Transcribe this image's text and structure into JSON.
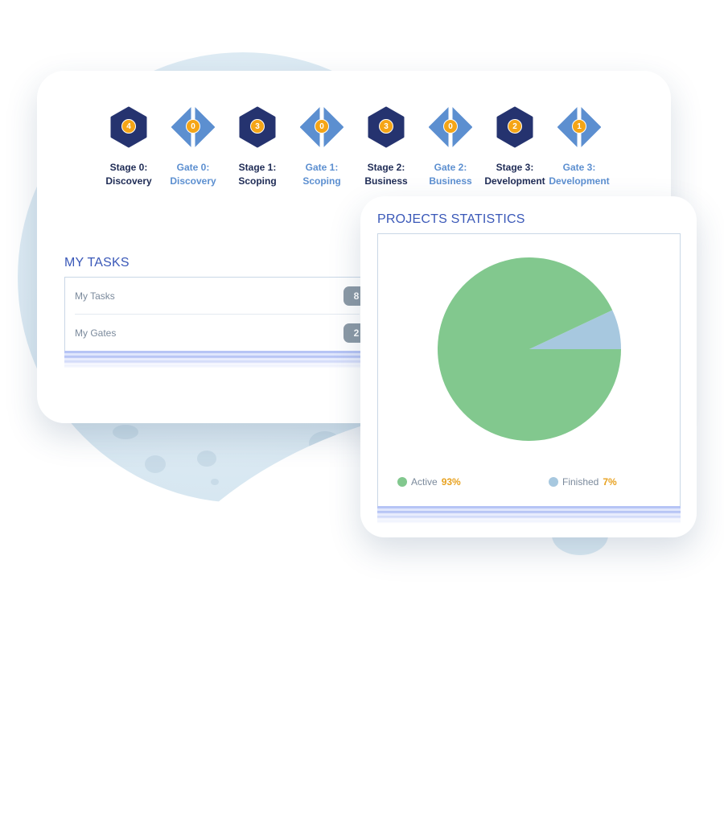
{
  "stages": [
    {
      "kind": "stage",
      "count": "4",
      "line1": "Stage 0:",
      "line2": "Discovery"
    },
    {
      "kind": "gate",
      "count": "0",
      "line1": "Gate 0:",
      "line2": "Discovery"
    },
    {
      "kind": "stage",
      "count": "3",
      "line1": "Stage 1:",
      "line2": "Scoping"
    },
    {
      "kind": "gate",
      "count": "0",
      "line1": "Gate 1:",
      "line2": "Scoping"
    },
    {
      "kind": "stage",
      "count": "3",
      "line1": "Stage 2:",
      "line2": "Business"
    },
    {
      "kind": "gate",
      "count": "0",
      "line1": "Gate 2:",
      "line2": "Business"
    },
    {
      "kind": "stage",
      "count": "2",
      "line1": "Stage 3:",
      "line2": "Development"
    },
    {
      "kind": "gate",
      "count": "1",
      "line1": "Gate 3:",
      "line2": "Development"
    }
  ],
  "tasks": {
    "title": "MY TASKS",
    "rows": [
      {
        "label": "My Tasks",
        "count": "8"
      },
      {
        "label": "My Gates",
        "count": "2"
      }
    ]
  },
  "stats": {
    "title": "PROJECTS STATISTICS"
  },
  "chart_data": {
    "type": "pie",
    "slices": [
      {
        "label": "Active",
        "value": 93,
        "display": "93%",
        "color": "#82c88e"
      },
      {
        "label": "Finished",
        "value": 7,
        "display": "7%",
        "color": "#a7c8df"
      }
    ]
  },
  "colors": {
    "stage_hex": "#25336f",
    "gate_diamond": "#5c8fd0",
    "count_badge": "#f5a516",
    "section_title": "#3a58b8",
    "task_badge": "#8c9aa6"
  },
  "icons": {
    "stage": "hexagon-icon",
    "gate": "diamond-gate-icon"
  }
}
